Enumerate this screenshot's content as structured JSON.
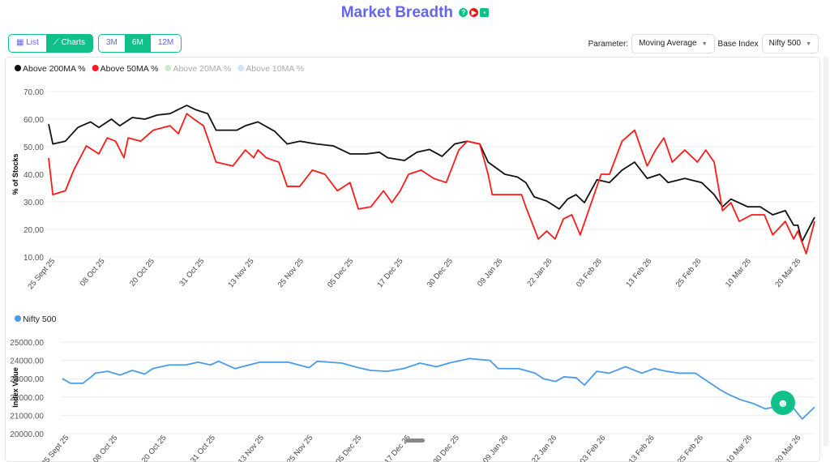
{
  "header": {
    "title": "Market Breadth",
    "icons": [
      "help-icon",
      "youtube-icon",
      "chat-icon"
    ]
  },
  "view_toggle": {
    "list": "List",
    "charts": "Charts",
    "active": "Charts"
  },
  "range_toggle": {
    "options": [
      "3M",
      "6M",
      "12M"
    ],
    "active": "6M"
  },
  "controls": {
    "parameter_label": "Parameter:",
    "parameter_value": "Moving Average",
    "base_index_label": "Base Index",
    "base_index_value": "Nifty 500"
  },
  "colors": {
    "accent": "#10c08a",
    "title": "#6366f1",
    "ma200": "#111111",
    "ma50": "#ff1a1a",
    "ma20": "#cfe8cf",
    "ma10": "#d6e4f5",
    "nifty": "#4a9be8"
  },
  "chart_data": [
    {
      "type": "line",
      "title": "",
      "ylabel": "% of Stocks",
      "ylim": [
        10,
        70
      ],
      "yticks": [
        "10.00",
        "20.00",
        "30.00",
        "40.00",
        "50.00",
        "60.00",
        "70.00"
      ],
      "xlabels": [
        "25 Sept 25",
        "08 Oct 25",
        "20 Oct 25",
        "31 Oct 25",
        "13 Nov 25",
        "25 Nov 25",
        "05 Dec 25",
        "17 Dec 25",
        "30 Dec 25",
        "09 Jan 26",
        "22 Jan 26",
        "03 Feb 26",
        "13 Feb 26",
        "25 Feb 26",
        "10 Mar 26",
        "20 Mar 26"
      ],
      "x_unit": "days since 25 Sept 25",
      "xlim": [
        0,
        183
      ],
      "legend": "top-left",
      "series": [
        {
          "name": "Above 200MA %",
          "enabled": true,
          "points": [
            [
              0,
              58.2
            ],
            [
              1,
              51
            ],
            [
              4,
              52
            ],
            [
              7,
              57
            ],
            [
              10,
              59
            ],
            [
              12,
              57
            ],
            [
              15,
              60
            ],
            [
              17,
              57.6
            ],
            [
              20,
              60.6
            ],
            [
              23,
              60
            ],
            [
              26,
              61.5
            ],
            [
              29,
              62
            ],
            [
              31,
              63.5
            ],
            [
              33,
              65
            ],
            [
              35,
              63.5
            ],
            [
              38,
              62
            ],
            [
              40,
              56
            ],
            [
              45,
              56
            ],
            [
              47,
              57.6
            ],
            [
              50,
              59
            ],
            [
              54,
              55.6
            ],
            [
              57,
              51
            ],
            [
              60,
              52
            ],
            [
              64,
              51
            ],
            [
              68,
              50.3
            ],
            [
              72,
              47.4
            ],
            [
              76,
              47.4
            ],
            [
              79,
              48
            ],
            [
              81,
              46
            ],
            [
              85,
              45
            ],
            [
              88,
              48
            ],
            [
              91,
              49
            ],
            [
              94,
              46.5
            ],
            [
              97,
              51
            ],
            [
              100,
              52
            ],
            [
              103,
              51
            ],
            [
              105,
              44.4
            ],
            [
              109,
              40
            ],
            [
              112,
              39
            ],
            [
              114,
              37
            ],
            [
              116,
              31.8
            ],
            [
              119,
              30.3
            ],
            [
              122,
              27.4
            ],
            [
              124,
              31
            ],
            [
              126,
              32.6
            ],
            [
              128,
              29.7
            ],
            [
              131,
              38
            ],
            [
              134,
              37
            ],
            [
              137,
              41.5
            ],
            [
              140,
              44.4
            ],
            [
              143,
              38.5
            ],
            [
              146,
              40
            ],
            [
              148,
              37
            ],
            [
              152,
              38.5
            ],
            [
              156,
              37
            ],
            [
              159,
              32.6
            ],
            [
              161,
              28.2
            ],
            [
              163,
              31
            ],
            [
              167,
              28.2
            ],
            [
              170,
              28.2
            ],
            [
              173,
              25.3
            ],
            [
              176,
              26.8
            ],
            [
              178,
              21.5
            ],
            [
              179,
              21.5
            ],
            [
              180,
              15.6
            ],
            [
              183,
              24.4
            ]
          ]
        },
        {
          "name": "Above 50MA %",
          "enabled": true,
          "points": [
            [
              0,
              45.9
            ],
            [
              1,
              32.6
            ],
            [
              4,
              34
            ],
            [
              6,
              41.5
            ],
            [
              9,
              50.3
            ],
            [
              12,
              47.4
            ],
            [
              14,
              53.2
            ],
            [
              16,
              52
            ],
            [
              18,
              46
            ],
            [
              19,
              53.2
            ],
            [
              22,
              52
            ],
            [
              25,
              56
            ],
            [
              29,
              57.6
            ],
            [
              31,
              54.7
            ],
            [
              33,
              62
            ],
            [
              35,
              59.7
            ],
            [
              37,
              57.6
            ],
            [
              40,
              44.4
            ],
            [
              44,
              43
            ],
            [
              47,
              48.8
            ],
            [
              49,
              46
            ],
            [
              50,
              48.8
            ],
            [
              52,
              46
            ],
            [
              55,
              44.4
            ],
            [
              57,
              35.6
            ],
            [
              60,
              35.6
            ],
            [
              63,
              41.5
            ],
            [
              66,
              40
            ],
            [
              69,
              34
            ],
            [
              72,
              37
            ],
            [
              74,
              27.4
            ],
            [
              77,
              28.2
            ],
            [
              80,
              34
            ],
            [
              82,
              29.7
            ],
            [
              84,
              34
            ],
            [
              86,
              40
            ],
            [
              89,
              41.5
            ],
            [
              92,
              38.5
            ],
            [
              95,
              37
            ],
            [
              98,
              48.8
            ],
            [
              100,
              52
            ],
            [
              103,
              51
            ],
            [
              105,
              40
            ],
            [
              106,
              32.6
            ],
            [
              110,
              32.6
            ],
            [
              113,
              32.6
            ],
            [
              114,
              28.2
            ],
            [
              117,
              16.5
            ],
            [
              119,
              19.4
            ],
            [
              121,
              16.5
            ],
            [
              123,
              23.8
            ],
            [
              125,
              25.3
            ],
            [
              127,
              18
            ],
            [
              129,
              26.8
            ],
            [
              132,
              40
            ],
            [
              134,
              40
            ],
            [
              137,
              52
            ],
            [
              140,
              56
            ],
            [
              143,
              43
            ],
            [
              145,
              48.8
            ],
            [
              147,
              53.2
            ],
            [
              149,
              44.4
            ],
            [
              152,
              48.8
            ],
            [
              155,
              44.4
            ],
            [
              157,
              48.8
            ],
            [
              159,
              44.4
            ],
            [
              161,
              26.8
            ],
            [
              163,
              29.7
            ],
            [
              165,
              22.9
            ],
            [
              168,
              25.3
            ],
            [
              171,
              25.3
            ],
            [
              173,
              18
            ],
            [
              176,
              22.9
            ],
            [
              178,
              16.5
            ],
            [
              179,
              19.4
            ],
            [
              181,
              11.2
            ],
            [
              183,
              22.9
            ]
          ]
        },
        {
          "name": "Above 20MA %",
          "enabled": false,
          "points": []
        },
        {
          "name": "Above 10MA %",
          "enabled": false,
          "points": []
        }
      ]
    },
    {
      "type": "line",
      "ylabel": "Index Value",
      "ylim": [
        20000,
        25000
      ],
      "yticks": [
        "20000.00",
        "21000.00",
        "22000.00",
        "23000.00",
        "24000.00",
        "25000.00"
      ],
      "xlabels": [
        "25 Sept 25",
        "08 Oct 25",
        "20 Oct 25",
        "31 Oct 25",
        "13 Nov 25",
        "25 Nov 25",
        "05 Dec 25",
        "17 Dec 25",
        "30 Dec 25",
        "09 Jan 26",
        "22 Jan 26",
        "03 Feb 26",
        "13 Feb 26",
        "25 Feb 26",
        "10 Mar 26",
        "20 Mar 26"
      ],
      "x_unit": "days since 25 Sept 25",
      "xlim": [
        0,
        183
      ],
      "legend": "top-left",
      "series": [
        {
          "name": "Nifty 500",
          "enabled": true,
          "points": [
            [
              0,
              23000
            ],
            [
              2,
              22750
            ],
            [
              5,
              22750
            ],
            [
              7,
              23100
            ],
            [
              8,
              23300
            ],
            [
              11,
              23400
            ],
            [
              14,
              23200
            ],
            [
              17,
              23450
            ],
            [
              20,
              23250
            ],
            [
              22,
              23550
            ],
            [
              26,
              23750
            ],
            [
              30,
              23750
            ],
            [
              33,
              23900
            ],
            [
              36,
              23750
            ],
            [
              38,
              23950
            ],
            [
              42,
              23550
            ],
            [
              48,
              23900
            ],
            [
              55,
              23900
            ],
            [
              60,
              23600
            ],
            [
              62,
              23950
            ],
            [
              68,
              23850
            ],
            [
              72,
              23600
            ],
            [
              75,
              23450
            ],
            [
              79,
              23400
            ],
            [
              83,
              23550
            ],
            [
              87,
              23850
            ],
            [
              91,
              23650
            ],
            [
              94,
              23850
            ],
            [
              99,
              24100
            ],
            [
              104,
              24000
            ],
            [
              106,
              23550
            ],
            [
              111,
              23550
            ],
            [
              115,
              23300
            ],
            [
              117,
              23000
            ],
            [
              120,
              22850
            ],
            [
              122,
              23100
            ],
            [
              125,
              23050
            ],
            [
              127,
              22650
            ],
            [
              130,
              23400
            ],
            [
              133,
              23300
            ],
            [
              137,
              23650
            ],
            [
              141,
              23300
            ],
            [
              144,
              23550
            ],
            [
              147,
              23400
            ],
            [
              150,
              23300
            ],
            [
              154,
              23300
            ],
            [
              157,
              22850
            ],
            [
              160,
              22400
            ],
            [
              162,
              22150
            ],
            [
              165,
              21850
            ],
            [
              168,
              21650
            ],
            [
              171,
              21350
            ],
            [
              175,
              21550
            ],
            [
              178,
              21350
            ],
            [
              180,
              20800
            ],
            [
              183,
              21450
            ]
          ]
        }
      ]
    }
  ]
}
